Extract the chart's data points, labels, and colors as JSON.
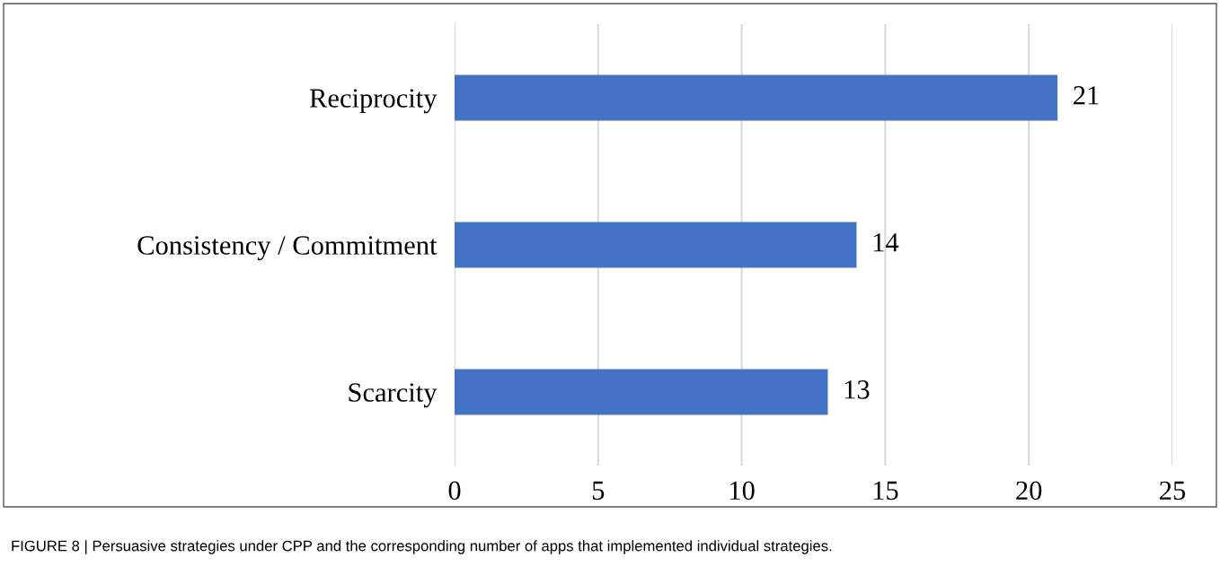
{
  "chart_data": {
    "type": "bar",
    "orientation": "horizontal",
    "categories": [
      "Reciprocity",
      "Consistency / Commitment",
      "Scarcity"
    ],
    "values": [
      21,
      14,
      13
    ],
    "color": "#4472c4",
    "xlim": [
      0,
      25
    ],
    "xticks": [
      0,
      5,
      10,
      15,
      20,
      25
    ],
    "grid": "x",
    "data_labels": true,
    "annotations": [
      "FIGURE 8 | Persuasive strategies under CPP and the corresponding number of apps that implemented individual strategies."
    ]
  }
}
